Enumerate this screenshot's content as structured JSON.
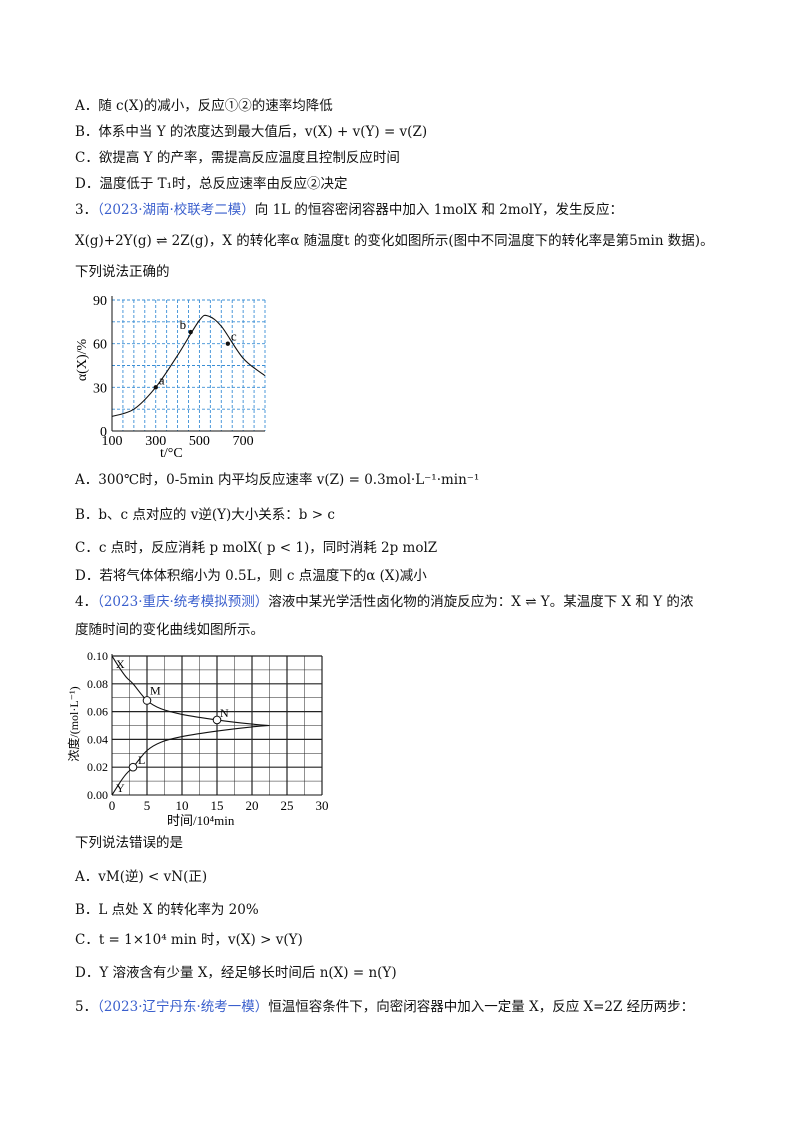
{
  "q2_options": [
    "A．随 c(X)的减小，反应①②的速率均降低",
    "B．体系中当 Y 的浓度达到最大值后，v(X) + v(Y) = v(Z)",
    "C．欲提高 Y 的产率，需提高反应温度且控制反应时间",
    "D．温度低于 T₁时，总反应速率由反应②决定"
  ],
  "q3": {
    "num": "3．",
    "source": "（2023·湖南·校联考二模）",
    "stem1": "向 1L 的恒容密闭容器中加入 1molX 和 2molY，发生反应：",
    "stem2": "X(g)+2Y(g) ⇌ 2Z(g)，X 的转化率α 随温度t 的变化如图所示(图中不同温度下的转化率是第5min 数据)。",
    "stem3": "下列说法正确的",
    "options": [
      "A．300℃时，0-5min 内平均反应速率 v(Z) = 0.3mol·L⁻¹·min⁻¹",
      "B．b、c 点对应的 v逆(Y)大小关系：b > c",
      "C．c 点时，反应消耗 p molX( p < 1)，同时消耗 2p molZ",
      "D．若将气体体积缩小为 0.5L，则 c 点温度下的α (X)减小"
    ]
  },
  "q4": {
    "num": "4．",
    "source": "（2023·重庆·统考模拟预测）",
    "stem1": "溶液中某光学活性卤化物的消旋反应为：X ⇌ Y。某温度下 X 和 Y 的浓",
    "stem2": "度随时间的变化曲线如图所示。",
    "stem3": "下列说法错误的是",
    "options": [
      "A．vM(逆) < vN(正)",
      "B．L 点处 X 的转化率为 20%",
      "C．t = 1×10⁴ min 时，v(X) > v(Y)",
      "D．Y 溶液含有少量 X，经足够长时间后 n(X) = n(Y)"
    ]
  },
  "q5": {
    "num": "5．",
    "source": "（2023·辽宁丹东·统考一模）",
    "stem": "恒温恒容条件下，向密闭容器中加入一定量 X，反应 X=2Z 经历两步："
  },
  "chart_data": [
    {
      "type": "line",
      "xlabel": "t/°C",
      "ylabel": "α(X)/%",
      "xlim": [
        100,
        800
      ],
      "ylim": [
        0,
        90
      ],
      "x_ticks": [
        100,
        300,
        500,
        700
      ],
      "y_ticks": [
        0,
        30,
        60,
        90
      ],
      "grid": true,
      "series": [
        {
          "x": [
            100,
            200,
            300,
            400,
            500,
            540,
            600,
            700,
            800
          ],
          "y": [
            10,
            15,
            30,
            52,
            76,
            79,
            72,
            50,
            38
          ]
        }
      ],
      "points": [
        {
          "label": "a",
          "x": 300,
          "y": 30
        },
        {
          "label": "b",
          "x": 460,
          "y": 68
        },
        {
          "label": "c",
          "x": 630,
          "y": 60
        }
      ]
    },
    {
      "type": "line",
      "xlabel": "时间/10⁴min",
      "ylabel": "浓度/(mol·L⁻¹)",
      "xlim": [
        0,
        30
      ],
      "ylim": [
        0,
        0.1
      ],
      "x_ticks": [
        0,
        5,
        10,
        15,
        20,
        25,
        30
      ],
      "y_ticks": [
        "0.00",
        "0.02",
        "0.04",
        "0.06",
        "0.08",
        "0.10"
      ],
      "grid": true,
      "series": [
        {
          "name": "X",
          "x": [
            0,
            1,
            2,
            3,
            5,
            7,
            10,
            15,
            20,
            22.5
          ],
          "y": [
            0.1,
            0.092,
            0.085,
            0.08,
            0.068,
            0.062,
            0.058,
            0.054,
            0.051,
            0.05
          ]
        },
        {
          "name": "Y",
          "x": [
            0,
            1,
            2,
            3,
            5,
            7,
            10,
            15,
            20,
            22.5
          ],
          "y": [
            0.0,
            0.008,
            0.015,
            0.02,
            0.032,
            0.038,
            0.042,
            0.046,
            0.049,
            0.05
          ]
        }
      ],
      "points": [
        {
          "label": "M",
          "x": 5,
          "y": 0.068
        },
        {
          "label": "N",
          "x": 15,
          "y": 0.054
        },
        {
          "label": "L",
          "x": 3,
          "y": 0.02
        }
      ]
    }
  ]
}
